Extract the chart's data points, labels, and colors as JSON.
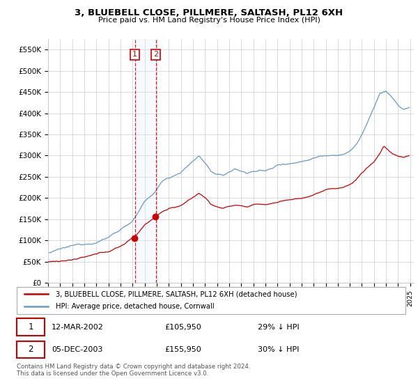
{
  "title": "3, BLUEBELL CLOSE, PILLMERE, SALTASH, PL12 6XH",
  "subtitle": "Price paid vs. HM Land Registry's House Price Index (HPI)",
  "ylim": [
    0,
    575000
  ],
  "yticks": [
    0,
    50000,
    100000,
    150000,
    200000,
    250000,
    300000,
    350000,
    400000,
    450000,
    500000,
    550000
  ],
  "ytick_labels": [
    "£0",
    "£50K",
    "£100K",
    "£150K",
    "£200K",
    "£250K",
    "£300K",
    "£350K",
    "£400K",
    "£450K",
    "£500K",
    "£550K"
  ],
  "property_color": "#cc0000",
  "hpi_color": "#6699cc",
  "transaction1_year": 2002.2,
  "transaction1_price": 105950,
  "transaction1_label": "29% ↓ HPI",
  "transaction1_date": "12-MAR-2002",
  "transaction2_year": 2003.92,
  "transaction2_price": 155950,
  "transaction2_label": "30% ↓ HPI",
  "transaction2_date": "05-DEC-2003",
  "legend_property": "3, BLUEBELL CLOSE, PILLMERE, SALTASH, PL12 6XH (detached house)",
  "legend_hpi": "HPI: Average price, detached house, Cornwall",
  "footnote": "Contains HM Land Registry data © Crown copyright and database right 2024.\nThis data is licensed under the Open Government Licence v3.0.",
  "grid_color": "#cccccc",
  "span_color": "#ddeeff"
}
